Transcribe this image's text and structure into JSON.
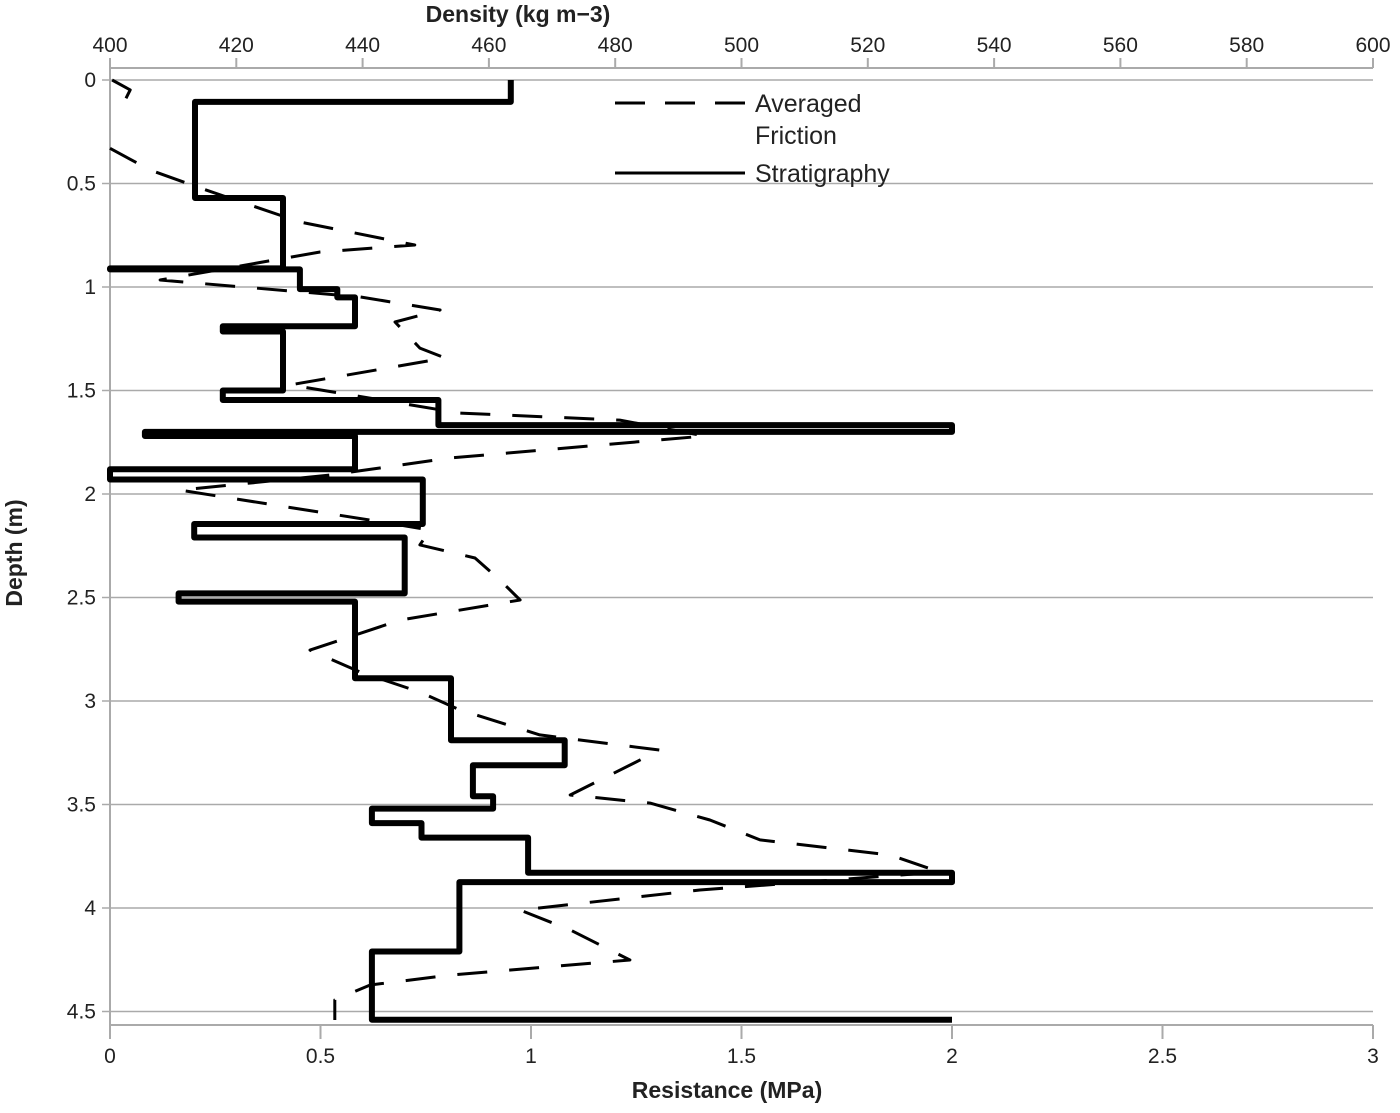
{
  "chart_data": {
    "type": "line",
    "xlabel_bottom": "Resistance (MPa)",
    "xlabel_top": "Density (kg m−3)",
    "ylabel": "Depth (m)",
    "xlim_bottom": [
      0,
      3
    ],
    "xticks_bottom": [
      "0",
      "0.5",
      "1",
      "1.5",
      "2",
      "2.5",
      "3"
    ],
    "xlim_top": [
      400,
      600
    ],
    "xticks_top": [
      "400",
      "420",
      "440",
      "460",
      "480",
      "500",
      "520",
      "540",
      "560",
      "580",
      "600"
    ],
    "ylim": [
      0,
      4.57
    ],
    "yticks": [
      "0",
      "0.5",
      "1",
      "1.5",
      "2",
      "2.5",
      "3",
      "3.5",
      "4",
      "4.5"
    ],
    "y_inverted": true,
    "grid": "horizontal",
    "legend_position": "top-center",
    "series": [
      {
        "name": "Averaged Friction",
        "style": "dashed",
        "color": "#000000",
        "points": [
          [
            0.005,
            0
          ],
          [
            0.048,
            0.048
          ],
          [
            0.024,
            0.145
          ],
          null,
          [
            0,
            0.33
          ],
          [
            0.095,
            0.435
          ],
          [
            0.226,
            0.53
          ],
          [
            0.451,
            0.686
          ],
          [
            0.724,
            0.797
          ],
          [
            0.499,
            0.831
          ],
          [
            0.119,
            0.966
          ],
          [
            0.594,
            1.048
          ],
          [
            0.784,
            1.111
          ],
          [
            0.677,
            1.169
          ],
          [
            0.736,
            1.295
          ],
          [
            0.796,
            1.343
          ],
          [
            0.428,
            1.473
          ],
          [
            0.831,
            1.609
          ],
          [
            1.211,
            1.643
          ],
          [
            1.413,
            1.72
          ],
          [
            0.808,
            1.826
          ],
          [
            0.523,
            1.908
          ],
          [
            0.166,
            1.981
          ],
          [
            0.618,
            2.126
          ],
          [
            0.76,
            2.174
          ],
          [
            0.736,
            2.246
          ],
          [
            0.867,
            2.309
          ],
          [
            0.926,
            2.415
          ],
          [
            0.974,
            2.512
          ],
          [
            0.689,
            2.609
          ],
          [
            0.475,
            2.754
          ],
          [
            0.594,
            2.86
          ],
          [
            0.736,
            2.957
          ],
          [
            0.831,
            3.043
          ],
          [
            1.021,
            3.164
          ],
          [
            1.306,
            3.237
          ],
          [
            1.093,
            3.454
          ],
          [
            1.283,
            3.493
          ],
          [
            1.425,
            3.575
          ],
          [
            1.544,
            3.671
          ],
          [
            1.853,
            3.744
          ],
          [
            1.971,
            3.826
          ],
          [
            1.401,
            3.913
          ],
          [
            0.974,
            4.01
          ],
          [
            1.093,
            4.106
          ],
          [
            1.235,
            4.251
          ],
          [
            0.808,
            4.324
          ],
          [
            0.618,
            4.372
          ],
          [
            0.534,
            4.444
          ],
          [
            0.534,
            4.541
          ]
        ]
      },
      {
        "name": "Stratigraphy",
        "style": "solid",
        "color": "#000000",
        "points": [
          [
            0.952,
            0
          ],
          [
            0.952,
            0.106
          ],
          [
            0.202,
            0.106
          ],
          [
            0.202,
            0.57
          ],
          [
            0.411,
            0.57
          ],
          [
            0.411,
            0.91
          ],
          [
            0,
            0.91
          ],
          [
            0,
            0.915
          ],
          [
            0.451,
            0.915
          ],
          [
            0.451,
            1.01
          ],
          [
            0.54,
            1.01
          ],
          [
            0.54,
            1.05
          ],
          [
            0.582,
            1.05
          ],
          [
            0.582,
            1.19
          ],
          [
            0.268,
            1.19
          ],
          [
            0.268,
            1.215
          ],
          [
            0.411,
            1.215
          ],
          [
            0.411,
            1.5
          ],
          [
            0.268,
            1.5
          ],
          [
            0.268,
            1.546
          ],
          [
            0.78,
            1.546
          ],
          [
            0.78,
            1.667
          ],
          [
            2.0,
            1.667
          ],
          [
            2.0,
            1.7
          ],
          [
            0.083,
            1.7
          ],
          [
            0.083,
            1.72
          ],
          [
            0.582,
            1.72
          ],
          [
            0.582,
            1.88
          ],
          [
            0,
            1.88
          ],
          [
            0,
            1.93
          ],
          [
            0.743,
            1.93
          ],
          [
            0.743,
            2.145
          ],
          [
            0.2,
            2.145
          ],
          [
            0.2,
            2.21
          ],
          [
            0.7,
            2.21
          ],
          [
            0.7,
            2.48
          ],
          [
            0.163,
            2.48
          ],
          [
            0.163,
            2.52
          ],
          [
            0.582,
            2.52
          ],
          [
            0.582,
            2.89
          ],
          [
            0.81,
            2.89
          ],
          [
            0.81,
            3.19
          ],
          [
            1.08,
            3.19
          ],
          [
            1.08,
            3.31
          ],
          [
            0.862,
            3.31
          ],
          [
            0.862,
            3.46
          ],
          [
            0.91,
            3.46
          ],
          [
            0.91,
            3.52
          ],
          [
            0.622,
            3.52
          ],
          [
            0.622,
            3.59
          ],
          [
            0.74,
            3.59
          ],
          [
            0.74,
            3.66
          ],
          [
            0.993,
            3.66
          ],
          [
            0.993,
            3.83
          ],
          [
            2.0,
            3.83
          ],
          [
            2.0,
            3.875
          ],
          [
            0.83,
            3.875
          ],
          [
            0.83,
            4.21
          ],
          [
            0.622,
            4.21
          ],
          [
            0.622,
            4.54
          ],
          [
            2.0,
            4.54
          ]
        ]
      }
    ],
    "legend": {
      "friction_line1": "Averaged",
      "friction_line2": "Friction",
      "stratigraphy": "Stratigraphy"
    }
  }
}
